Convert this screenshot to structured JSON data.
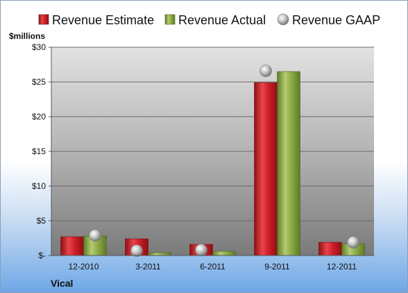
{
  "chart_data": {
    "type": "bar",
    "company": "Vical",
    "unit_label": "$millions",
    "categories": [
      "12-2010",
      "3-2011",
      "6-2011",
      "9-2011",
      "12-2011"
    ],
    "series": [
      {
        "name": "Revenue Estimate",
        "type": "bar",
        "color": "#d0202a",
        "values": [
          2.7,
          2.4,
          1.6,
          24.9,
          1.9
        ]
      },
      {
        "name": "Revenue Actual",
        "type": "bar",
        "color": "#8fac48",
        "values": [
          2.8,
          0.4,
          0.6,
          26.5,
          1.7
        ]
      },
      {
        "name": "Revenue GAAP",
        "type": "scatter",
        "color": "#a8a8a8",
        "values": [
          2.9,
          0.7,
          0.8,
          26.6,
          1.9
        ]
      }
    ],
    "y_ticks": [
      "$-",
      "$5",
      "$10",
      "$15",
      "$20",
      "$25",
      "$30"
    ],
    "ylim": [
      0,
      30
    ],
    "legend_position": "top",
    "grid": true
  }
}
